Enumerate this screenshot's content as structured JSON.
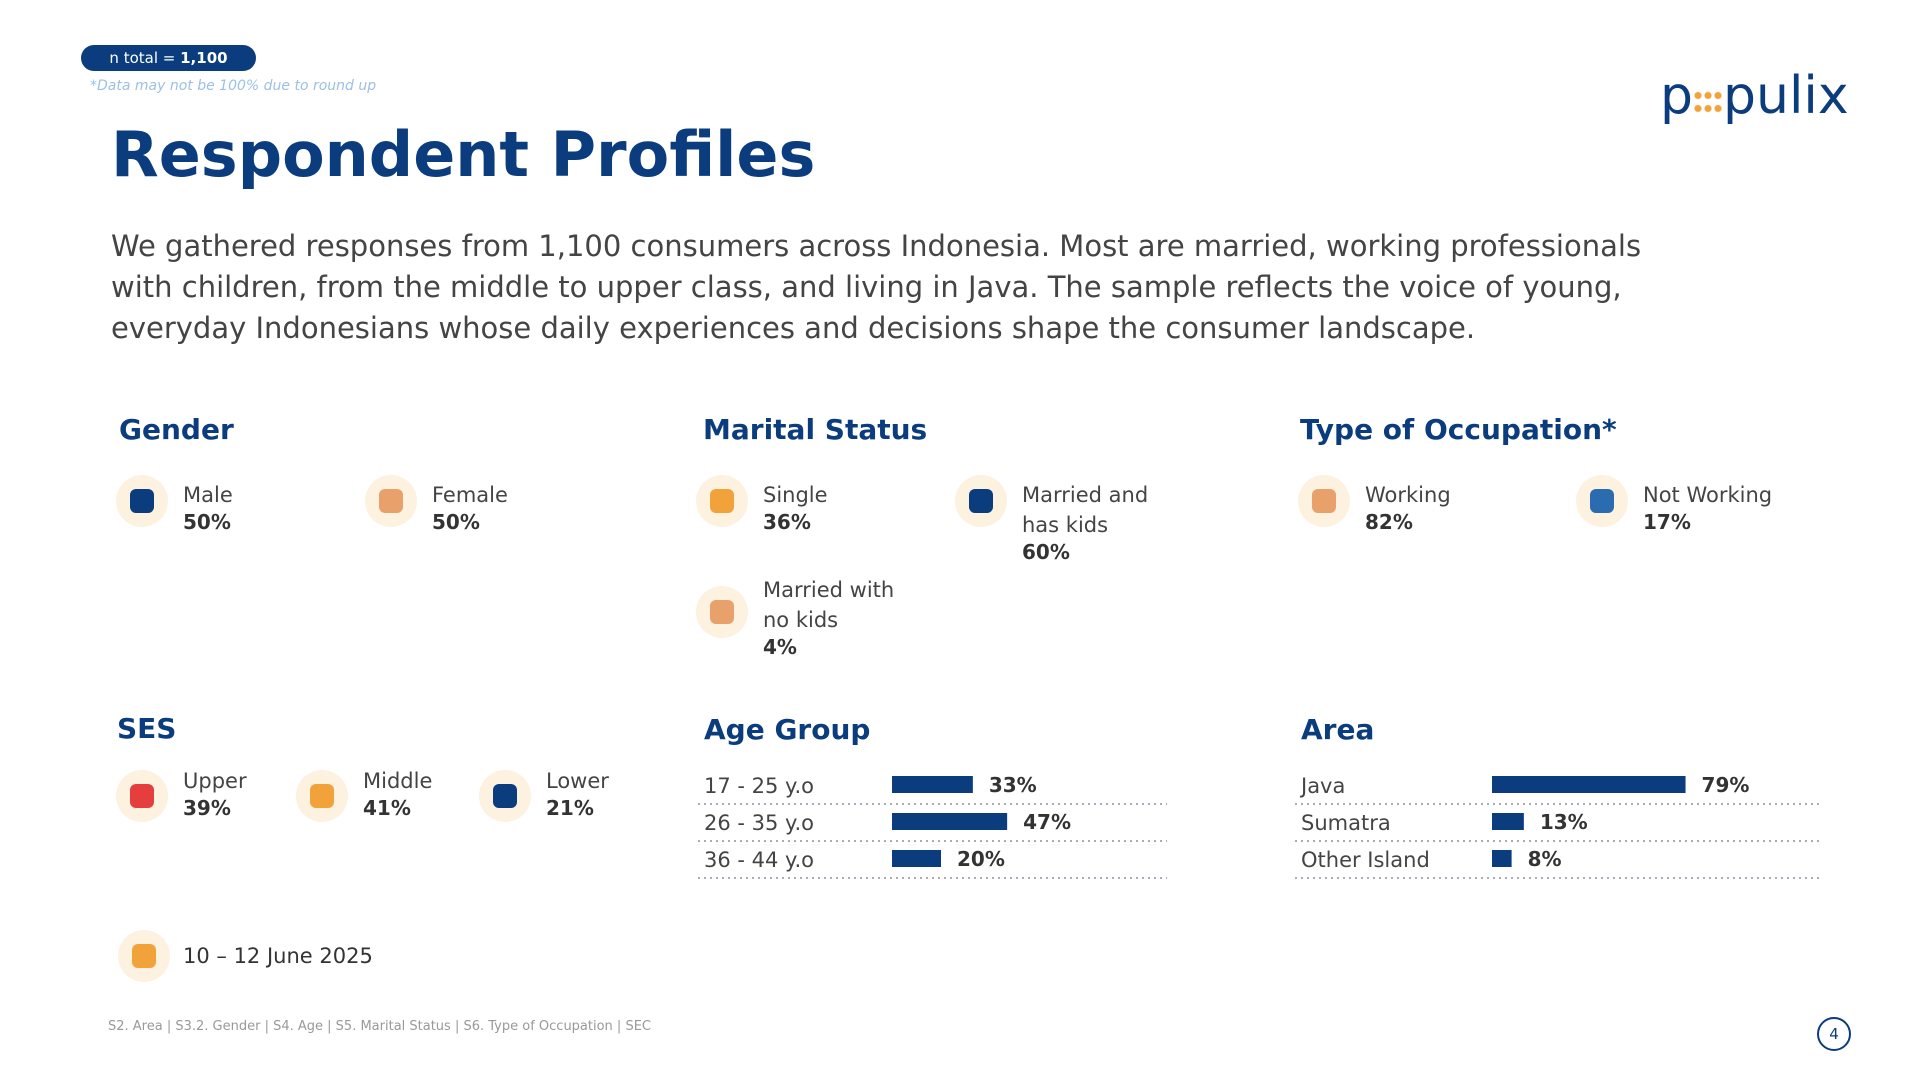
{
  "badge": {
    "label": "n total =",
    "value": "1,100"
  },
  "note": "*Data may not be 100% due to round up",
  "logo": {
    "left": "p",
    "right": "pulix"
  },
  "title": "Respondent Profiles",
  "description": "We gathered responses from 1,100 consumers across Indonesia. Most are married, working professionals with children, from the middle to upper class, and living in Java. The sample reflects the voice of young, everyday Indonesians whose daily experiences and decisions shape the consumer landscape.",
  "gender": {
    "title": "Gender",
    "items": [
      {
        "label": "Male",
        "value": "50%"
      },
      {
        "label": "Female",
        "value": "50%"
      }
    ]
  },
  "marital_status": {
    "title": "Marital Status",
    "items": [
      {
        "label": "Single",
        "value": "36%"
      },
      {
        "label": "Married and has kids",
        "value": "60%"
      },
      {
        "label": "Married with no kids",
        "value": "4%"
      }
    ]
  },
  "occupation": {
    "title": "Type of Occupation*",
    "items": [
      {
        "label": "Working",
        "value": "82%"
      },
      {
        "label": "Not Working",
        "value": "17%"
      }
    ]
  },
  "ses": {
    "title": "SES",
    "items": [
      {
        "label": "Upper",
        "value": "39%"
      },
      {
        "label": "Middle",
        "value": "41%"
      },
      {
        "label": "Lower",
        "value": "21%"
      }
    ]
  },
  "age_group": {
    "title": "Age Group",
    "categories": [
      "17 - 25 y.o",
      "26 - 35 y.o",
      "36 - 44 y.o"
    ],
    "values": [
      33,
      47,
      20
    ],
    "value_labels": [
      "33%",
      "47%",
      "20%"
    ],
    "color": "#0b3c7d"
  },
  "area": {
    "title": "Area",
    "categories": [
      "Java",
      "Sumatra",
      "Other Island"
    ],
    "values": [
      79,
      13,
      8
    ],
    "value_labels": [
      "79%",
      "13%",
      "8%"
    ],
    "color": "#0b3c7d"
  },
  "date": "10 – 12 June 2025",
  "footer": "S2. Area | S3.2. Gender | S4. Age | S5. Marital Status | S6. Type of Occupation | SEC",
  "page_number": "4"
}
